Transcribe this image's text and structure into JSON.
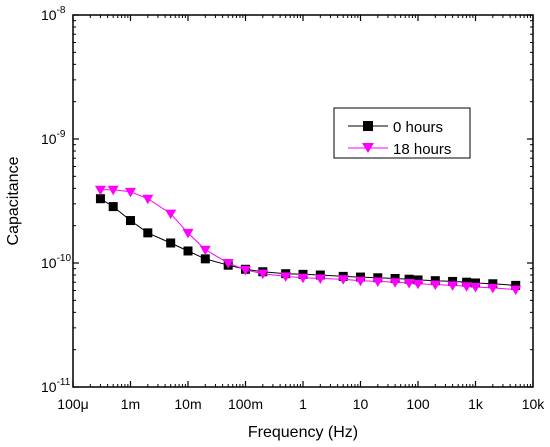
{
  "chart_data": {
    "type": "line",
    "xlabel": "Frequency (Hz)",
    "ylabel": "Capacitance",
    "x_scale": "log",
    "y_scale": "log",
    "xlim": [
      0.0001,
      10000
    ],
    "ylim": [
      1e-11,
      1e-08
    ],
    "x_ticks": [
      0.0001,
      0.001,
      0.01,
      0.1,
      1,
      10,
      100,
      1000,
      10000
    ],
    "x_tick_labels": [
      "100μ",
      "1m",
      "10m",
      "100m",
      "1",
      "10",
      "100",
      "1k",
      "10k"
    ],
    "y_ticks": [
      1e-11,
      1e-10,
      1e-09,
      1e-08
    ],
    "y_tick_labels": [
      {
        "base": "10",
        "exp": "-11"
      },
      {
        "base": "10",
        "exp": "-10"
      },
      {
        "base": "10",
        "exp": "-9"
      },
      {
        "base": "10",
        "exp": "-8"
      }
    ],
    "grid": false,
    "legend_position": "upper-right",
    "series": [
      {
        "name": "0 hours",
        "color": "#000000",
        "marker": "square",
        "points": [
          [
            0.0003,
            3.3e-10
          ],
          [
            0.0005,
            2.85e-10
          ],
          [
            0.001,
            2.2e-10
          ],
          [
            0.002,
            1.75e-10
          ],
          [
            0.005,
            1.45e-10
          ],
          [
            0.01,
            1.25e-10
          ],
          [
            0.02,
            1.08e-10
          ],
          [
            0.05,
            9.6e-11
          ],
          [
            0.1,
            8.9e-11
          ],
          [
            0.2,
            8.5e-11
          ],
          [
            0.5,
            8.2e-11
          ],
          [
            1,
            8.1e-11
          ],
          [
            2,
            8e-11
          ],
          [
            5,
            7.8e-11
          ],
          [
            10,
            7.7e-11
          ],
          [
            20,
            7.6e-11
          ],
          [
            40,
            7.5e-11
          ],
          [
            70,
            7.4e-11
          ],
          [
            100,
            7.3e-11
          ],
          [
            200,
            7.2e-11
          ],
          [
            400,
            7.1e-11
          ],
          [
            700,
            7e-11
          ],
          [
            1000,
            6.9e-11
          ],
          [
            2000,
            6.8e-11
          ],
          [
            5000,
            6.6e-11
          ]
        ]
      },
      {
        "name": "18 hours",
        "color": "#ff00ff",
        "marker": "triangle-down",
        "points": [
          [
            0.0003,
            3.9e-10
          ],
          [
            0.0005,
            3.9e-10
          ],
          [
            0.001,
            3.75e-10
          ],
          [
            0.002,
            3.3e-10
          ],
          [
            0.005,
            2.5e-10
          ],
          [
            0.01,
            1.75e-10
          ],
          [
            0.02,
            1.28e-10
          ],
          [
            0.05,
            1e-10
          ],
          [
            0.1,
            8.8e-11
          ],
          [
            0.2,
            8.2e-11
          ],
          [
            0.5,
            7.8e-11
          ],
          [
            1,
            7.6e-11
          ],
          [
            2,
            7.5e-11
          ],
          [
            5,
            7.4e-11
          ],
          [
            10,
            7.2e-11
          ],
          [
            20,
            7.1e-11
          ],
          [
            40,
            7e-11
          ],
          [
            70,
            6.9e-11
          ],
          [
            100,
            6.8e-11
          ],
          [
            200,
            6.7e-11
          ],
          [
            400,
            6.6e-11
          ],
          [
            700,
            6.5e-11
          ],
          [
            1000,
            6.4e-11
          ],
          [
            2000,
            6.3e-11
          ],
          [
            5000,
            6.1e-11
          ]
        ]
      }
    ]
  }
}
